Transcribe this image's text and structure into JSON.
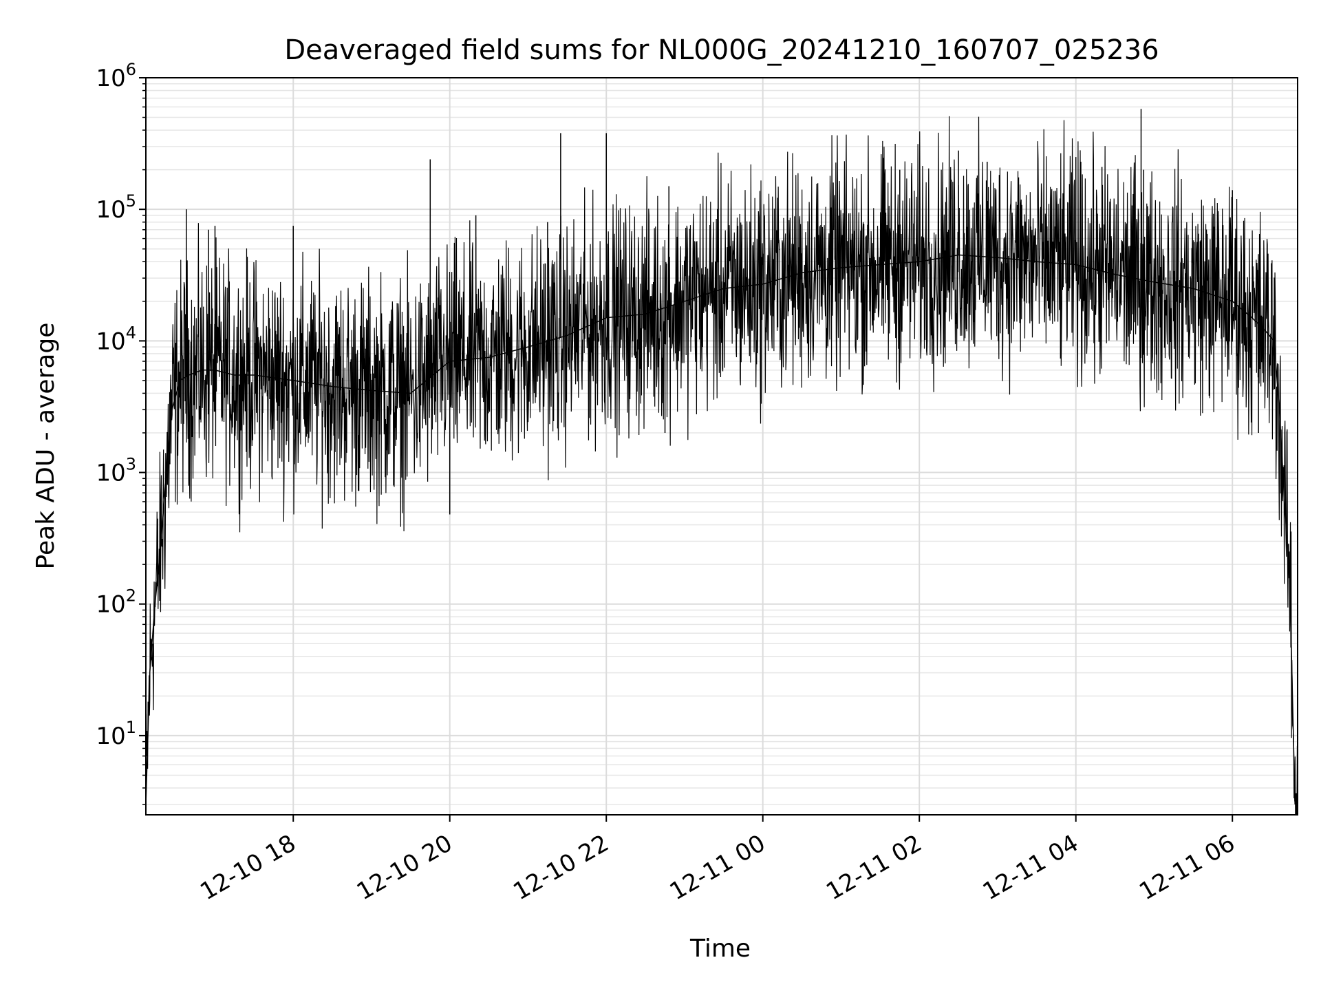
{
  "chart_data": {
    "type": "line",
    "title": "Deaveraged field sums for NL000G_20241210_160707_025236",
    "xlabel": "Time",
    "ylabel": "Peak ADU - average",
    "yscale": "log",
    "ylim": [
      2.5,
      1000000
    ],
    "xlim": [
      "2024-12-10 16:07",
      "2024-12-11 06:50"
    ],
    "grid": {
      "major": true,
      "minor_y": true
    },
    "line_color": "#000000",
    "x_ticks": [
      "12-10 18",
      "12-10 20",
      "12-10 22",
      "12-11 00",
      "12-11 02",
      "12-11 04",
      "12-11 06"
    ],
    "y_ticks": [
      {
        "base": "10",
        "exp": "1",
        "value": 10
      },
      {
        "base": "10",
        "exp": "2",
        "value": 100
      },
      {
        "base": "10",
        "exp": "3",
        "value": 1000
      },
      {
        "base": "10",
        "exp": "4",
        "value": 10000
      },
      {
        "base": "10",
        "exp": "5",
        "value": 100000
      },
      {
        "base": "10",
        "exp": "6",
        "value": 1000000
      }
    ],
    "series": [
      {
        "x": [
          "2024-12-10 16:07",
          "2024-12-10 16:10",
          "2024-12-10 16:14",
          "2024-12-10 16:18",
          "2024-12-10 16:22",
          "2024-12-10 16:27",
          "2024-12-10 16:33",
          "2024-12-10 16:40",
          "2024-12-10 16:50",
          "2024-12-10 17:00",
          "2024-12-10 17:15",
          "2024-12-10 17:30",
          "2024-12-10 18:00",
          "2024-12-10 18:30",
          "2024-12-10 19:00",
          "2024-12-10 19:30",
          "2024-12-10 20:00",
          "2024-12-10 20:30",
          "2024-12-10 21:00",
          "2024-12-10 21:30",
          "2024-12-10 22:00",
          "2024-12-10 22:30",
          "2024-12-10 23:00",
          "2024-12-10 23:30",
          "2024-12-11 00:00",
          "2024-12-11 00:30",
          "2024-12-11 01:00",
          "2024-12-11 01:30",
          "2024-12-11 02:00",
          "2024-12-11 02:30",
          "2024-12-11 03:00",
          "2024-12-11 03:30",
          "2024-12-11 04:00",
          "2024-12-11 04:30",
          "2024-12-11 05:00",
          "2024-12-11 05:30",
          "2024-12-11 06:00",
          "2024-12-11 06:15",
          "2024-12-11 06:25",
          "2024-12-11 06:32",
          "2024-12-11 06:36",
          "2024-12-11 06:40",
          "2024-12-11 06:44",
          "2024-12-11 06:48"
        ],
        "y": [
          3,
          30,
          100,
          250,
          800,
          3000,
          5000,
          5500,
          6000,
          6000,
          5500,
          5500,
          5000,
          4500,
          4200,
          4000,
          7000,
          7500,
          9000,
          11000,
          15000,
          16000,
          20000,
          25000,
          27000,
          33000,
          36000,
          38000,
          40000,
          45000,
          43000,
          40000,
          38000,
          32000,
          28000,
          25000,
          20000,
          15000,
          12000,
          10000,
          3000,
          600,
          150,
          3
        ]
      }
    ],
    "spikes": [
      {
        "x": "2024-12-10 16:38",
        "y": 100000
      },
      {
        "x": "2024-12-10 16:55",
        "y": 70000
      },
      {
        "x": "2024-12-10 17:00",
        "y": 75000
      },
      {
        "x": "2024-12-10 18:00",
        "y": 75000
      },
      {
        "x": "2024-12-10 19:45",
        "y": 240000
      },
      {
        "x": "2024-12-10 20:00",
        "y": 480
      },
      {
        "x": "2024-12-10 20:20",
        "y": 90000
      },
      {
        "x": "2024-12-10 21:15",
        "y": 80000
      },
      {
        "x": "2024-12-10 21:25",
        "y": 380000
      },
      {
        "x": "2024-12-10 22:00",
        "y": 380000
      },
      {
        "x": "2024-12-10 22:45",
        "y": 2000
      },
      {
        "x": "2024-12-10 22:48",
        "y": 150000
      },
      {
        "x": "2024-12-11 01:45",
        "y": 200000
      },
      {
        "x": "2024-12-11 02:30",
        "y": 280000
      },
      {
        "x": "2024-12-11 02:52",
        "y": 230000
      },
      {
        "x": "2024-12-11 04:00",
        "y": 250000
      },
      {
        "x": "2024-12-11 04:20",
        "y": 210000
      },
      {
        "x": "2024-12-11 04:50",
        "y": 580000
      },
      {
        "x": "2024-12-11 04:52",
        "y": 200000
      },
      {
        "x": "2024-12-11 06:00",
        "y": 140000
      },
      {
        "x": "2024-12-11 06:20",
        "y": 2000
      }
    ]
  }
}
